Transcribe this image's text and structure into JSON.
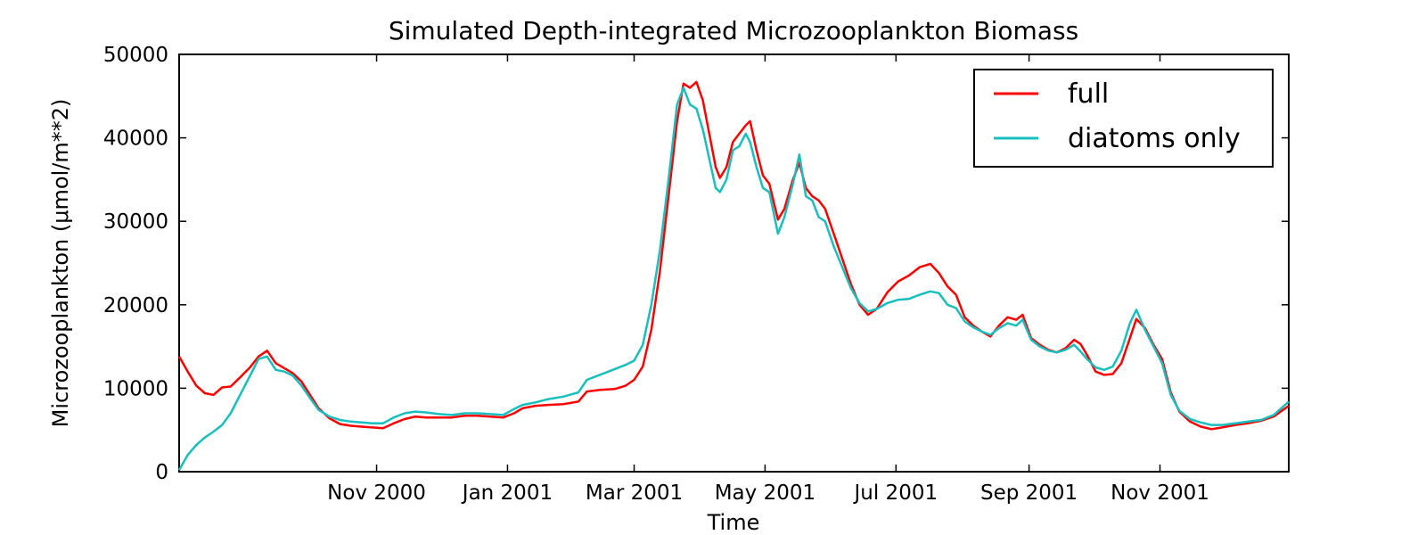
{
  "chart_data": {
    "type": "line",
    "title": "Simulated Depth-integrated Microzooplankton Biomass",
    "xlabel": "Time",
    "ylabel": "Microzooplankton (μmol/m**2)",
    "xlim": [
      "2000-08-01",
      "2001-12-31"
    ],
    "ylim": [
      0,
      50000
    ],
    "yticks": [
      0,
      10000,
      20000,
      30000,
      40000,
      50000
    ],
    "xticks": [
      {
        "date": "2000-11-01",
        "label": "Nov 2000"
      },
      {
        "date": "2001-01-01",
        "label": "Jan 2001"
      },
      {
        "date": "2001-03-01",
        "label": "Mar 2001"
      },
      {
        "date": "2001-05-01",
        "label": "May 2001"
      },
      {
        "date": "2001-07-01",
        "label": "Jul 2001"
      },
      {
        "date": "2001-09-01",
        "label": "Sep 2001"
      },
      {
        "date": "2001-11-01",
        "label": "Nov 2001"
      }
    ],
    "legend_position": "top-right",
    "grid": false,
    "series": [
      {
        "name": "full",
        "color": "#ff0000",
        "points": [
          [
            "2000-08-01",
            13800
          ],
          [
            "2000-08-05",
            12000
          ],
          [
            "2000-08-09",
            10300
          ],
          [
            "2000-08-13",
            9400
          ],
          [
            "2000-08-17",
            9200
          ],
          [
            "2000-08-21",
            10100
          ],
          [
            "2000-08-25",
            10200
          ],
          [
            "2000-08-29",
            11200
          ],
          [
            "2000-09-03",
            12500
          ],
          [
            "2000-09-07",
            13800
          ],
          [
            "2000-09-11",
            14500
          ],
          [
            "2000-09-15",
            13000
          ],
          [
            "2000-09-19",
            12400
          ],
          [
            "2000-09-23",
            11800
          ],
          [
            "2000-09-27",
            10800
          ],
          [
            "2000-10-01",
            9200
          ],
          [
            "2000-10-05",
            7600
          ],
          [
            "2000-10-10",
            6400
          ],
          [
            "2000-10-15",
            5700
          ],
          [
            "2000-10-20",
            5500
          ],
          [
            "2000-10-25",
            5400
          ],
          [
            "2000-10-30",
            5300
          ],
          [
            "2000-11-04",
            5200
          ],
          [
            "2000-11-09",
            5800
          ],
          [
            "2000-11-14",
            6300
          ],
          [
            "2000-11-19",
            6600
          ],
          [
            "2000-11-24",
            6500
          ],
          [
            "2000-11-30",
            6500
          ],
          [
            "2000-12-06",
            6500
          ],
          [
            "2000-12-12",
            6700
          ],
          [
            "2000-12-18",
            6700
          ],
          [
            "2000-12-24",
            6600
          ],
          [
            "2000-12-30",
            6500
          ],
          [
            "2001-01-04",
            7000
          ],
          [
            "2001-01-08",
            7600
          ],
          [
            "2001-01-14",
            7900
          ],
          [
            "2001-01-20",
            8000
          ],
          [
            "2001-01-27",
            8100
          ],
          [
            "2001-02-03",
            8400
          ],
          [
            "2001-02-07",
            9600
          ],
          [
            "2001-02-13",
            9800
          ],
          [
            "2001-02-20",
            9900
          ],
          [
            "2001-02-25",
            10300
          ],
          [
            "2001-03-01",
            11000
          ],
          [
            "2001-03-05",
            12600
          ],
          [
            "2001-03-09",
            17000
          ],
          [
            "2001-03-13",
            24000
          ],
          [
            "2001-03-17",
            33000
          ],
          [
            "2001-03-21",
            42000
          ],
          [
            "2001-03-24",
            46500
          ],
          [
            "2001-03-27",
            46000
          ],
          [
            "2001-03-30",
            46700
          ],
          [
            "2001-04-02",
            44500
          ],
          [
            "2001-04-05",
            40500
          ],
          [
            "2001-04-08",
            36500
          ],
          [
            "2001-04-10",
            35200
          ],
          [
            "2001-04-13",
            36500
          ],
          [
            "2001-04-16",
            39500
          ],
          [
            "2001-04-19",
            40500
          ],
          [
            "2001-04-22",
            41500
          ],
          [
            "2001-04-24",
            42000
          ],
          [
            "2001-04-27",
            38500
          ],
          [
            "2001-04-30",
            35500
          ],
          [
            "2001-05-03",
            34500
          ],
          [
            "2001-05-07",
            30200
          ],
          [
            "2001-05-10",
            31500
          ],
          [
            "2001-05-14",
            35000
          ],
          [
            "2001-05-17",
            37000
          ],
          [
            "2001-05-20",
            34000
          ],
          [
            "2001-05-23",
            33000
          ],
          [
            "2001-05-26",
            32500
          ],
          [
            "2001-05-29",
            31500
          ],
          [
            "2001-06-02",
            28500
          ],
          [
            "2001-06-06",
            25500
          ],
          [
            "2001-06-10",
            22500
          ],
          [
            "2001-06-14",
            20000
          ],
          [
            "2001-06-18",
            18800
          ],
          [
            "2001-06-22",
            19500
          ],
          [
            "2001-06-27",
            21500
          ],
          [
            "2001-07-02",
            22800
          ],
          [
            "2001-07-07",
            23500
          ],
          [
            "2001-07-12",
            24500
          ],
          [
            "2001-07-17",
            24900
          ],
          [
            "2001-07-21",
            23800
          ],
          [
            "2001-07-25",
            22200
          ],
          [
            "2001-07-29",
            21200
          ],
          [
            "2001-08-02",
            18500
          ],
          [
            "2001-08-06",
            17500
          ],
          [
            "2001-08-10",
            16800
          ],
          [
            "2001-08-14",
            16200
          ],
          [
            "2001-08-18",
            17500
          ],
          [
            "2001-08-22",
            18500
          ],
          [
            "2001-08-26",
            18200
          ],
          [
            "2001-08-29",
            18800
          ],
          [
            "2001-09-02",
            16000
          ],
          [
            "2001-09-06",
            15200
          ],
          [
            "2001-09-10",
            14600
          ],
          [
            "2001-09-14",
            14300
          ],
          [
            "2001-09-18",
            14800
          ],
          [
            "2001-09-22",
            15800
          ],
          [
            "2001-09-25",
            15300
          ],
          [
            "2001-09-28",
            14000
          ],
          [
            "2001-10-02",
            12000
          ],
          [
            "2001-10-06",
            11600
          ],
          [
            "2001-10-10",
            11700
          ],
          [
            "2001-10-14",
            13000
          ],
          [
            "2001-10-18",
            16000
          ],
          [
            "2001-10-21",
            18300
          ],
          [
            "2001-10-25",
            17200
          ],
          [
            "2001-10-29",
            15200
          ],
          [
            "2001-11-02",
            13500
          ],
          [
            "2001-11-06",
            9500
          ],
          [
            "2001-11-10",
            7200
          ],
          [
            "2001-11-15",
            6000
          ],
          [
            "2001-11-20",
            5400
          ],
          [
            "2001-11-25",
            5100
          ],
          [
            "2001-11-30",
            5300
          ],
          [
            "2001-12-06",
            5600
          ],
          [
            "2001-12-12",
            5800
          ],
          [
            "2001-12-18",
            6100
          ],
          [
            "2001-12-24",
            6600
          ],
          [
            "2001-12-31",
            7900
          ]
        ]
      },
      {
        "name": "diatoms only",
        "color": "#17bfbf",
        "points": [
          [
            "2000-08-01",
            200
          ],
          [
            "2000-08-05",
            2000
          ],
          [
            "2000-08-09",
            3200
          ],
          [
            "2000-08-13",
            4100
          ],
          [
            "2000-08-17",
            4800
          ],
          [
            "2000-08-21",
            5600
          ],
          [
            "2000-08-25",
            7000
          ],
          [
            "2000-08-29",
            9000
          ],
          [
            "2000-09-03",
            11500
          ],
          [
            "2000-09-07",
            13500
          ],
          [
            "2000-09-11",
            13800
          ],
          [
            "2000-09-15",
            12200
          ],
          [
            "2000-09-19",
            12000
          ],
          [
            "2000-09-23",
            11500
          ],
          [
            "2000-09-27",
            10300
          ],
          [
            "2000-10-01",
            8800
          ],
          [
            "2000-10-05",
            7400
          ],
          [
            "2000-10-10",
            6600
          ],
          [
            "2000-10-15",
            6200
          ],
          [
            "2000-10-20",
            6000
          ],
          [
            "2000-10-25",
            5900
          ],
          [
            "2000-10-30",
            5800
          ],
          [
            "2000-11-04",
            5800
          ],
          [
            "2000-11-09",
            6500
          ],
          [
            "2000-11-14",
            7000
          ],
          [
            "2000-11-19",
            7200
          ],
          [
            "2000-11-24",
            7100
          ],
          [
            "2000-11-30",
            6900
          ],
          [
            "2000-12-06",
            6800
          ],
          [
            "2000-12-12",
            7000
          ],
          [
            "2000-12-18",
            7000
          ],
          [
            "2000-12-24",
            6900
          ],
          [
            "2000-12-30",
            6800
          ],
          [
            "2001-01-04",
            7500
          ],
          [
            "2001-01-08",
            8000
          ],
          [
            "2001-01-14",
            8300
          ],
          [
            "2001-01-20",
            8700
          ],
          [
            "2001-01-27",
            9000
          ],
          [
            "2001-02-03",
            9500
          ],
          [
            "2001-02-07",
            11000
          ],
          [
            "2001-02-13",
            11600
          ],
          [
            "2001-02-20",
            12300
          ],
          [
            "2001-02-25",
            12800
          ],
          [
            "2001-03-01",
            13300
          ],
          [
            "2001-03-05",
            15200
          ],
          [
            "2001-03-09",
            20000
          ],
          [
            "2001-03-13",
            26500
          ],
          [
            "2001-03-17",
            35000
          ],
          [
            "2001-03-21",
            44000
          ],
          [
            "2001-03-24",
            46000
          ],
          [
            "2001-03-27",
            44000
          ],
          [
            "2001-03-30",
            43500
          ],
          [
            "2001-04-02",
            41000
          ],
          [
            "2001-04-05",
            37500
          ],
          [
            "2001-04-08",
            34000
          ],
          [
            "2001-04-10",
            33500
          ],
          [
            "2001-04-13",
            35000
          ],
          [
            "2001-04-16",
            38500
          ],
          [
            "2001-04-19",
            39000
          ],
          [
            "2001-04-22",
            40500
          ],
          [
            "2001-04-24",
            39500
          ],
          [
            "2001-04-27",
            36500
          ],
          [
            "2001-04-30",
            34000
          ],
          [
            "2001-05-03",
            33500
          ],
          [
            "2001-05-07",
            28500
          ],
          [
            "2001-05-10",
            30500
          ],
          [
            "2001-05-14",
            34500
          ],
          [
            "2001-05-17",
            38000
          ],
          [
            "2001-05-20",
            33000
          ],
          [
            "2001-05-23",
            32500
          ],
          [
            "2001-05-26",
            30500
          ],
          [
            "2001-05-29",
            30000
          ],
          [
            "2001-06-02",
            27000
          ],
          [
            "2001-06-06",
            24500
          ],
          [
            "2001-06-10",
            22000
          ],
          [
            "2001-06-14",
            20200
          ],
          [
            "2001-06-18",
            19200
          ],
          [
            "2001-06-22",
            19500
          ],
          [
            "2001-06-27",
            20200
          ],
          [
            "2001-07-02",
            20600
          ],
          [
            "2001-07-07",
            20700
          ],
          [
            "2001-07-12",
            21200
          ],
          [
            "2001-07-17",
            21600
          ],
          [
            "2001-07-21",
            21400
          ],
          [
            "2001-07-25",
            20000
          ],
          [
            "2001-07-29",
            19600
          ],
          [
            "2001-08-02",
            18000
          ],
          [
            "2001-08-06",
            17300
          ],
          [
            "2001-08-10",
            16800
          ],
          [
            "2001-08-14",
            16400
          ],
          [
            "2001-08-18",
            17200
          ],
          [
            "2001-08-22",
            17800
          ],
          [
            "2001-08-26",
            17500
          ],
          [
            "2001-08-29",
            18200
          ],
          [
            "2001-09-02",
            15800
          ],
          [
            "2001-09-06",
            15000
          ],
          [
            "2001-09-10",
            14500
          ],
          [
            "2001-09-14",
            14300
          ],
          [
            "2001-09-18",
            14600
          ],
          [
            "2001-09-22",
            15200
          ],
          [
            "2001-09-25",
            14400
          ],
          [
            "2001-09-28",
            13500
          ],
          [
            "2001-10-02",
            12500
          ],
          [
            "2001-10-06",
            12200
          ],
          [
            "2001-10-10",
            12600
          ],
          [
            "2001-10-14",
            14500
          ],
          [
            "2001-10-18",
            17800
          ],
          [
            "2001-10-21",
            19400
          ],
          [
            "2001-10-25",
            17000
          ],
          [
            "2001-10-29",
            15000
          ],
          [
            "2001-11-02",
            13000
          ],
          [
            "2001-11-06",
            9200
          ],
          [
            "2001-11-10",
            7300
          ],
          [
            "2001-11-15",
            6300
          ],
          [
            "2001-11-20",
            5900
          ],
          [
            "2001-11-25",
            5600
          ],
          [
            "2001-11-30",
            5600
          ],
          [
            "2001-12-06",
            5800
          ],
          [
            "2001-12-12",
            6000
          ],
          [
            "2001-12-18",
            6200
          ],
          [
            "2001-12-24",
            6800
          ],
          [
            "2001-12-31",
            8400
          ]
        ]
      }
    ]
  }
}
